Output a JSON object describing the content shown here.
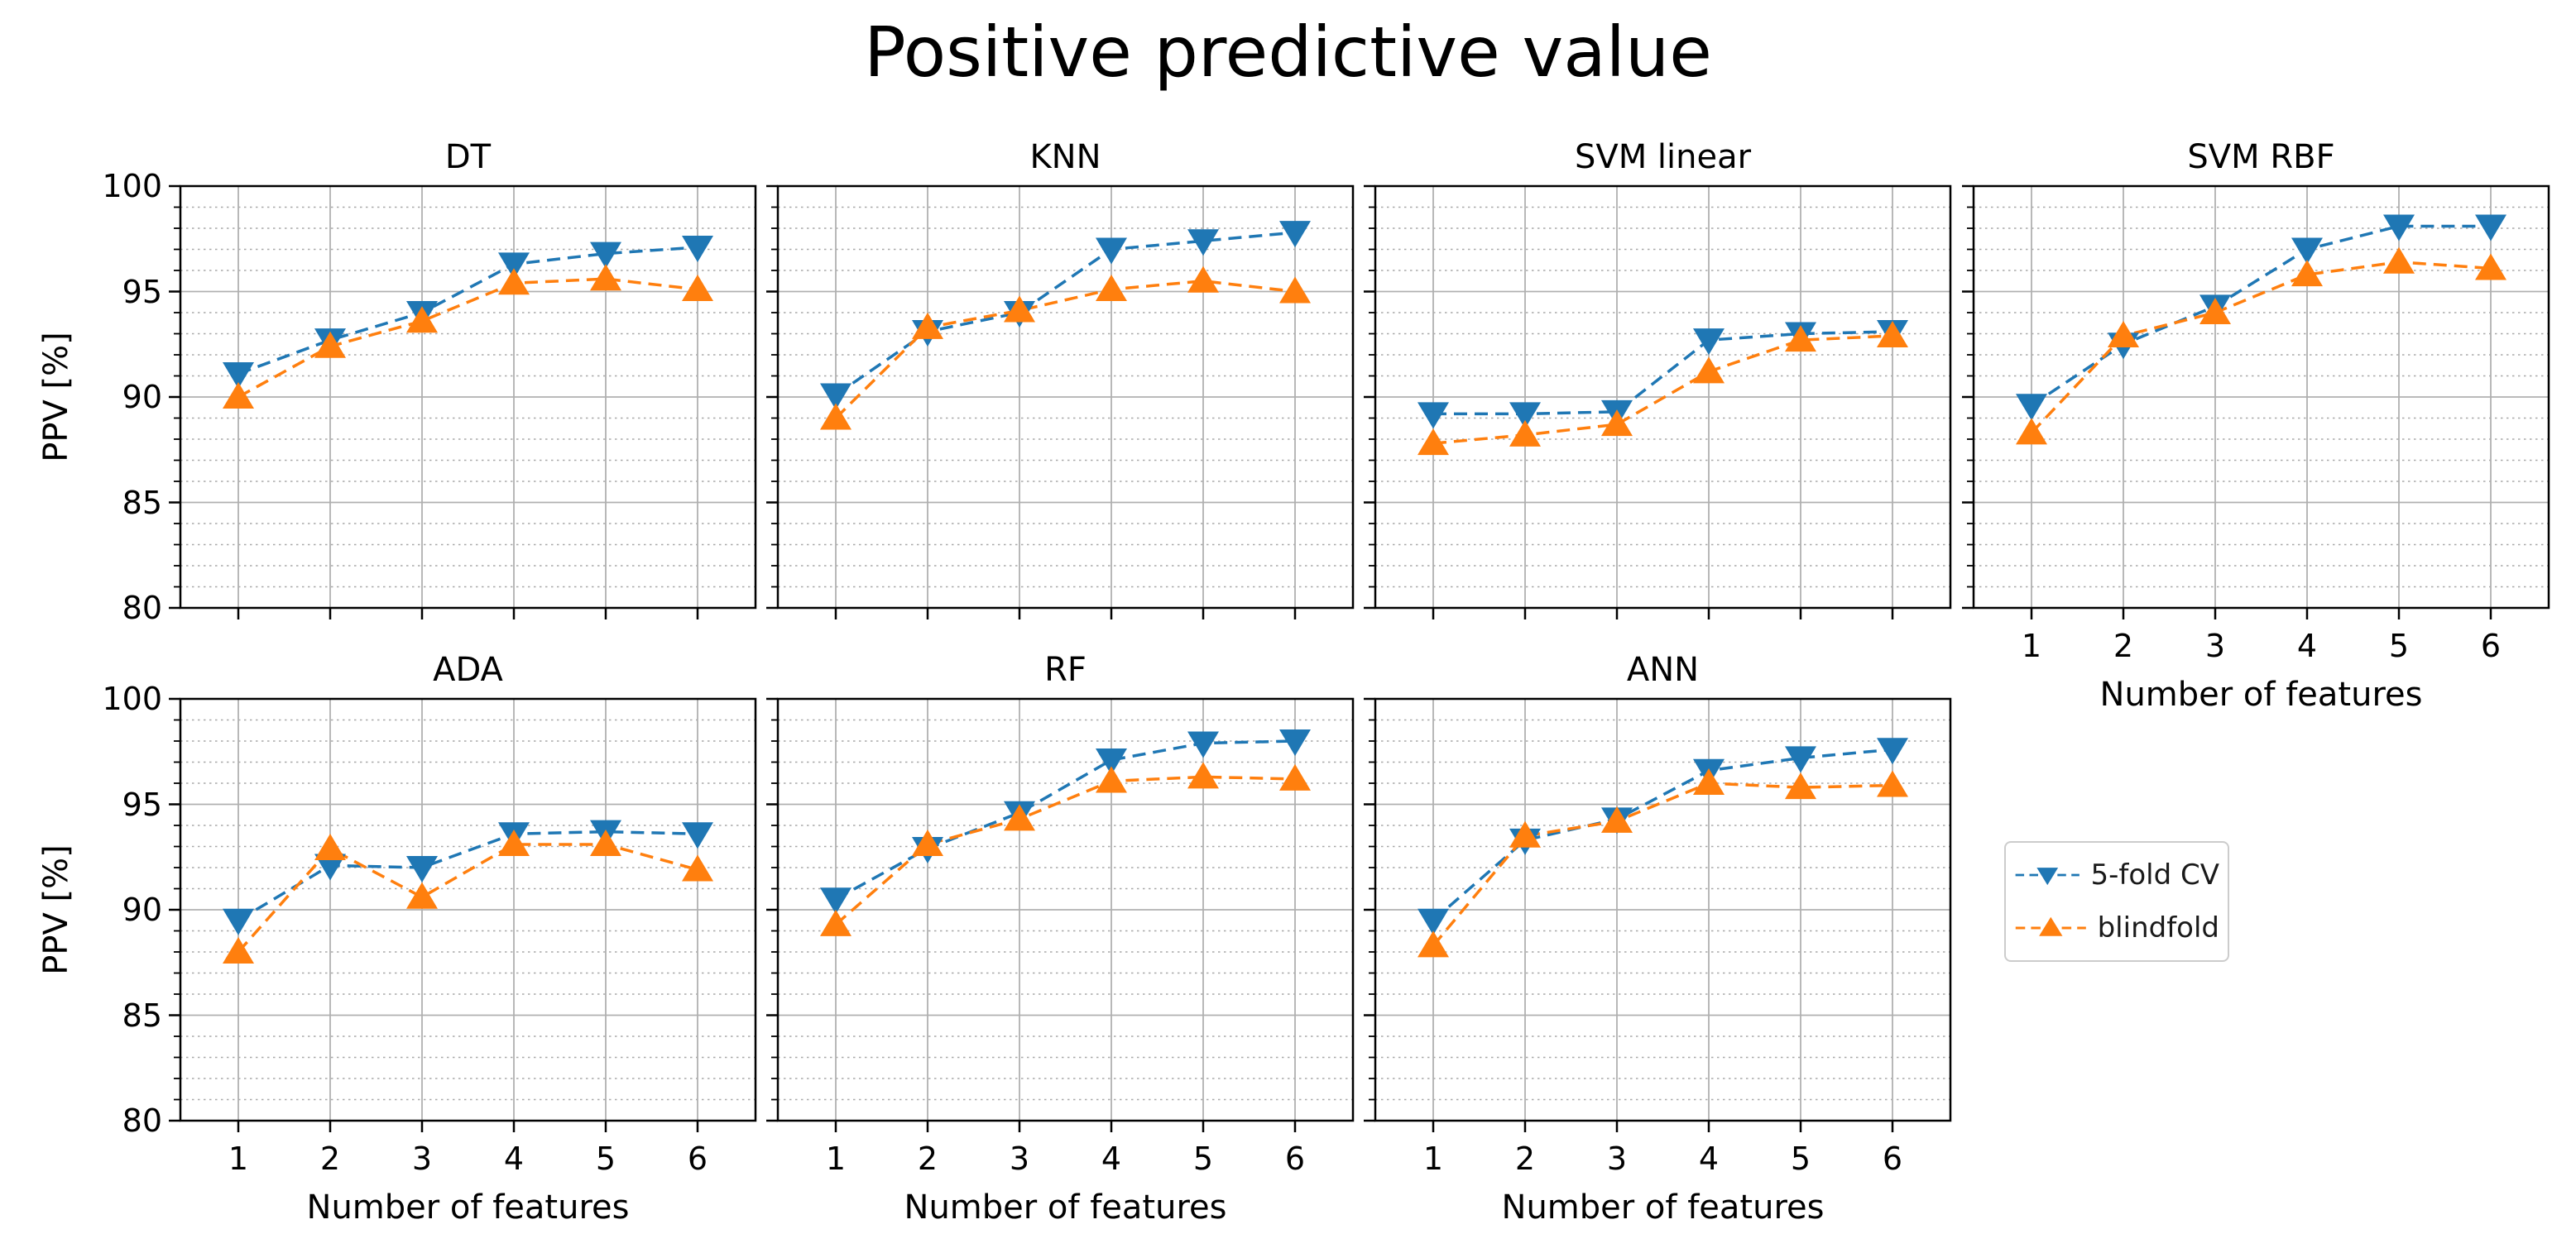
{
  "figure": {
    "title": "Positive predictive value",
    "ylabel": "PPV [%]",
    "xlabel": "Number of features"
  },
  "legend": {
    "items": [
      {
        "label": "5-fold CV",
        "marker": "triangle-down-icon",
        "color": "#1f77b4"
      },
      {
        "label": "blindfold",
        "marker": "triangle-up-icon",
        "color": "#ff7f0e"
      }
    ]
  },
  "chart_data": {
    "type": "line",
    "x": [
      1,
      2,
      3,
      4,
      5,
      6
    ],
    "xlabel": "Number of features",
    "ylabel": "PPV [%]",
    "ylim": [
      80,
      100
    ],
    "yticks": [
      80,
      85,
      90,
      95,
      100
    ],
    "xticks": [
      1,
      2,
      3,
      4,
      5,
      6
    ],
    "grid": true,
    "line_style": "dashed",
    "legend_position": "right-middle",
    "series_colors": {
      "5-fold CV": "#1f77b4",
      "blindfold": "#ff7f0e"
    },
    "series_markers": {
      "5-fold CV": "triangle-down",
      "blindfold": "triangle-up"
    },
    "subplots": [
      {
        "title": "DT",
        "series": [
          {
            "name": "5-fold CV",
            "values": [
              91.1,
              92.7,
              94.0,
              96.3,
              96.8,
              97.1
            ]
          },
          {
            "name": "blindfold",
            "values": [
              90.0,
              92.4,
              93.6,
              95.4,
              95.6,
              95.1
            ]
          }
        ]
      },
      {
        "title": "KNN",
        "series": [
          {
            "name": "5-fold CV",
            "values": [
              90.1,
              93.1,
              94.0,
              97.0,
              97.4,
              97.8
            ]
          },
          {
            "name": "blindfold",
            "values": [
              89.0,
              93.3,
              94.1,
              95.1,
              95.5,
              95.0
            ]
          }
        ]
      },
      {
        "title": "SVM linear",
        "series": [
          {
            "name": "5-fold CV",
            "values": [
              89.2,
              89.2,
              89.3,
              92.7,
              93.0,
              93.1
            ]
          },
          {
            "name": "blindfold",
            "values": [
              87.8,
              88.2,
              88.7,
              91.2,
              92.7,
              92.9
            ]
          }
        ]
      },
      {
        "title": "SVM RBF",
        "series": [
          {
            "name": "5-fold CV",
            "values": [
              89.6,
              92.5,
              94.3,
              97.0,
              98.1,
              98.1
            ]
          },
          {
            "name": "blindfold",
            "values": [
              88.3,
              92.9,
              94.0,
              95.8,
              96.4,
              96.1
            ]
          }
        ]
      },
      {
        "title": "ADA",
        "series": [
          {
            "name": "5-fold CV",
            "values": [
              89.5,
              92.1,
              92.0,
              93.6,
              93.7,
              93.6
            ]
          },
          {
            "name": "blindfold",
            "values": [
              88.0,
              92.9,
              90.6,
              93.1,
              93.1,
              91.9
            ]
          }
        ]
      },
      {
        "title": "RF",
        "series": [
          {
            "name": "5-fold CV",
            "values": [
              90.5,
              92.9,
              94.6,
              97.1,
              97.9,
              98.0
            ]
          },
          {
            "name": "blindfold",
            "values": [
              89.3,
              93.1,
              94.3,
              96.1,
              96.3,
              96.2
            ]
          }
        ]
      },
      {
        "title": "ANN",
        "series": [
          {
            "name": "5-fold CV",
            "values": [
              89.5,
              93.3,
              94.3,
              96.6,
              97.2,
              97.6
            ]
          },
          {
            "name": "blindfold",
            "values": [
              88.3,
              93.5,
              94.2,
              96.0,
              95.8,
              95.9
            ]
          }
        ]
      }
    ]
  }
}
